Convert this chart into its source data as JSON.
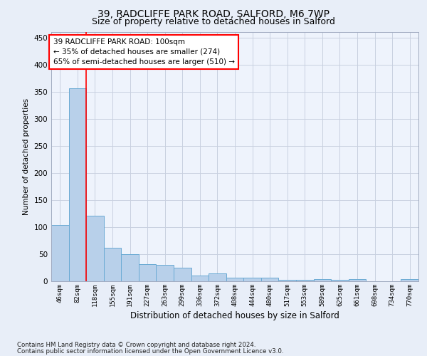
{
  "title1": "39, RADCLIFFE PARK ROAD, SALFORD, M6 7WP",
  "title2": "Size of property relative to detached houses in Salford",
  "xlabel": "Distribution of detached houses by size in Salford",
  "ylabel": "Number of detached properties",
  "bar_values": [
    104,
    356,
    121,
    62,
    50,
    31,
    30,
    25,
    11,
    14,
    6,
    7,
    7,
    2,
    2,
    4,
    2,
    4,
    0,
    0,
    4
  ],
  "bar_labels": [
    "46sqm",
    "82sqm",
    "118sqm",
    "155sqm",
    "191sqm",
    "227sqm",
    "263sqm",
    "299sqm",
    "336sqm",
    "372sqm",
    "408sqm",
    "444sqm",
    "480sqm",
    "517sqm",
    "553sqm",
    "589sqm",
    "625sqm",
    "661sqm",
    "698sqm",
    "734sqm",
    "770sqm"
  ],
  "bar_color": "#b8d0ea",
  "bar_edge_color": "#6aaad4",
  "annotation_line1": "39 RADCLIFFE PARK ROAD: 100sqm",
  "annotation_line2": "← 35% of detached houses are smaller (274)",
  "annotation_line3": "65% of semi-detached houses are larger (510) →",
  "red_line_x": 1.5,
  "ylim": [
    0,
    460
  ],
  "yticks": [
    0,
    50,
    100,
    150,
    200,
    250,
    300,
    350,
    400,
    450
  ],
  "footer1": "Contains HM Land Registry data © Crown copyright and database right 2024.",
  "footer2": "Contains public sector information licensed under the Open Government Licence v3.0.",
  "bg_color": "#e8eef8",
  "plot_bg_color": "#eef3fc",
  "grid_color": "#c8d0e0",
  "title1_fontsize": 10,
  "title2_fontsize": 9
}
